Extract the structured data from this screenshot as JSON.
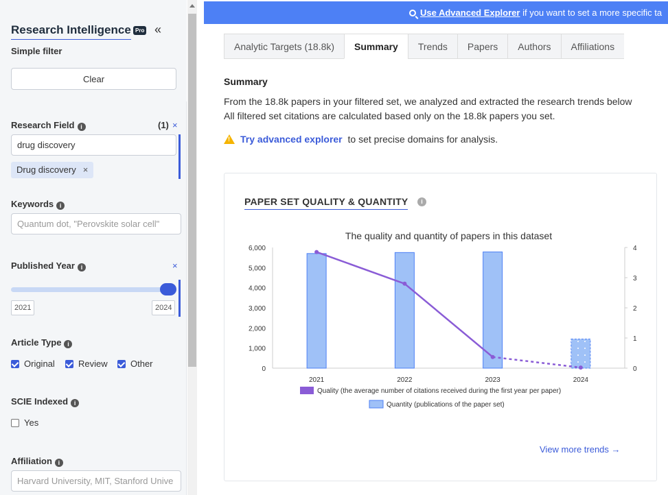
{
  "sidebar": {
    "app_title": "Research Intelligence",
    "pro_badge": "Pro",
    "collapse_icon": "«",
    "simple_filter": "Simple filter",
    "clear_label": "Clear",
    "research_field": {
      "label": "Research Field",
      "count": "(1)",
      "input_value": "drug discovery",
      "tag": "Drug discovery"
    },
    "keywords": {
      "label": "Keywords",
      "placeholder": "Quantum dot, \"Perovskite solar cell\""
    },
    "published_year": {
      "label": "Published Year",
      "start": "2021",
      "end": "2024"
    },
    "article_type": {
      "label": "Article Type",
      "options": [
        {
          "label": "Original",
          "checked": true
        },
        {
          "label": "Review",
          "checked": true
        },
        {
          "label": "Other",
          "checked": true
        }
      ]
    },
    "scie_indexed": {
      "label": "SCIE Indexed",
      "option": "Yes",
      "checked": false
    },
    "affiliation": {
      "label": "Affiliation",
      "placeholder": "Harvard University, MIT, Stanford Unive"
    },
    "close_x": "×",
    "info_i": "i"
  },
  "banner": {
    "link": "Use Advanced Explorer",
    "text": " if you want to set a more specific ta"
  },
  "tabs": [
    {
      "label": "Analytic Targets (18.8k)",
      "active": false
    },
    {
      "label": "Summary",
      "active": true
    },
    {
      "label": "Trends",
      "active": false
    },
    {
      "label": "Papers",
      "active": false
    },
    {
      "label": "Authors",
      "active": false
    },
    {
      "label": "Affiliations",
      "active": false
    }
  ],
  "summary": {
    "title": "Summary",
    "line1": "From the 18.8k papers in your filtered set, we analyzed and extracted the research trends below",
    "line2": "All filtered set citations are calculated based only on the 18.8k papers you set.",
    "warn_link": "Try advanced explorer",
    "warn_text": "to set precise domains for analysis."
  },
  "card": {
    "title": "PAPER SET QUALITY & QUANTITY",
    "info": "i",
    "view_more": "View more trends →"
  },
  "colors": {
    "bar_fill": "#9fc1f7",
    "bar_stroke": "#4d80f5",
    "line": "#8a5cd6",
    "accent": "#3b5bd9"
  },
  "chart_data": {
    "type": "bar",
    "title": "The quality and quantity of papers in this dataset",
    "categories": [
      "2021",
      "2022",
      "2023",
      "2024"
    ],
    "y_left_ticks": [
      "0",
      "1,000",
      "2,000",
      "3,000",
      "4,000",
      "5,000",
      "6,000"
    ],
    "y_right_ticks": [
      "0",
      "1",
      "2",
      "3",
      "4"
    ],
    "ylim_left": [
      0,
      6000
    ],
    "ylim_right": [
      0,
      4
    ],
    "series": [
      {
        "name": "Quantity (publications of the paper set)",
        "type": "bar",
        "axis": "left",
        "values": [
          5700,
          5750,
          5780,
          1450
        ],
        "partial_last": true
      },
      {
        "name": "Quality (the average number of citations received during the first year per paper)",
        "type": "line",
        "axis": "right",
        "values": [
          3.85,
          2.8,
          0.37,
          0.02
        ],
        "dashed_from_index": 2
      }
    ],
    "legend_position": "bottom"
  }
}
